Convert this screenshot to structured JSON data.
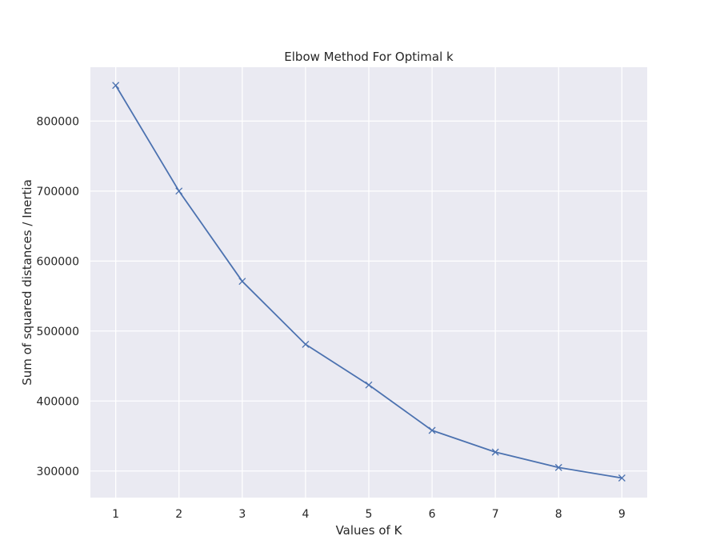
{
  "chart_data": {
    "type": "line",
    "title": "Elbow Method For Optimal k",
    "xlabel": "Values of K",
    "ylabel": "Sum of squared distances / Inertia",
    "x": [
      1,
      2,
      3,
      4,
      5,
      6,
      7,
      8,
      9
    ],
    "series": [
      {
        "values": [
          851000,
          700000,
          571000,
          481000,
          423000,
          358000,
          327000,
          305000,
          290000
        ],
        "color": "#4c72b0",
        "marker": "x"
      }
    ],
    "xlim": [
      0.6,
      9.4
    ],
    "ylim": [
      262000,
      877000
    ],
    "xticks": [
      1,
      2,
      3,
      4,
      5,
      6,
      7,
      8,
      9
    ],
    "yticks": [
      300000,
      400000,
      500000,
      600000,
      700000,
      800000
    ],
    "grid": true,
    "background": "#eaeaf2",
    "gridColor": "#ffffff"
  }
}
